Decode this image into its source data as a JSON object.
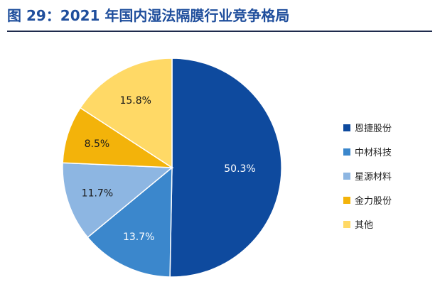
{
  "figure": {
    "title": "图 29：2021 年国内湿法隔膜行业竞争格局"
  },
  "chart_data": {
    "type": "pie",
    "title": "",
    "legend_position": "right",
    "slices": [
      {
        "name": "恩捷股份",
        "value": 50.3,
        "label": "50.3%",
        "color": "#0e4a9e",
        "label_color": "#ffffff"
      },
      {
        "name": "中材科技",
        "value": 13.7,
        "label": "13.7%",
        "color": "#3b87cc",
        "label_color": "#ffffff"
      },
      {
        "name": "星源材料",
        "value": 11.7,
        "label": "11.7%",
        "color": "#8db6e2",
        "label_color": "#1a1a1a"
      },
      {
        "name": "金力股份",
        "value": 8.5,
        "label": "8.5%",
        "color": "#f3b30a",
        "label_color": "#1a1a1a"
      },
      {
        "name": "其他",
        "value": 15.8,
        "label": "15.8%",
        "color": "#ffd966",
        "label_color": "#1a1a1a"
      }
    ]
  }
}
